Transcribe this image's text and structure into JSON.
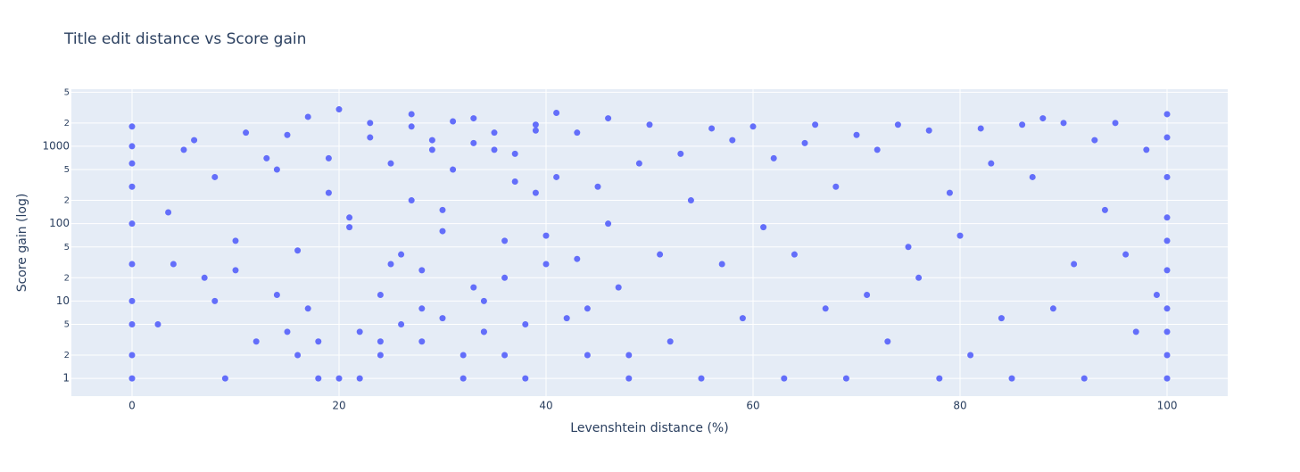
{
  "chart_data": {
    "type": "scatter",
    "title": "Title edit distance vs Score gain",
    "x_label": "Levenshtein distance (%)",
    "y_label": "Score gain (log)",
    "color": "#636efa",
    "y_log": true,
    "grid": true,
    "xlim": [
      -5.86,
      105.86
    ],
    "ylim": [
      0.59,
      5460
    ],
    "xticks": [
      0,
      20,
      40,
      60,
      80,
      100
    ],
    "yticks": [
      1,
      2,
      5,
      10,
      {
        "value": 20,
        "label": "2"
      },
      {
        "value": 50,
        "label": "5"
      },
      100,
      {
        "value": 200,
        "label": "2"
      },
      {
        "value": 500,
        "label": "5"
      },
      1000,
      {
        "value": 2000,
        "label": "2"
      },
      {
        "value": 5000,
        "label": "5"
      }
    ],
    "x": [
      0,
      0,
      0,
      0,
      0,
      0,
      0,
      0,
      0,
      0,
      100,
      100,
      100,
      100,
      100,
      100,
      100,
      100,
      100,
      100,
      2.5,
      3.5,
      4,
      5,
      6,
      7,
      8,
      9,
      10,
      11,
      12,
      13,
      14,
      15,
      16,
      17,
      18,
      19,
      20,
      21,
      22,
      23,
      24,
      25,
      26,
      27,
      28,
      29,
      30,
      31,
      32,
      33,
      34,
      35,
      36,
      37,
      38,
      39,
      40,
      41,
      42,
      43,
      44,
      45,
      46,
      47,
      48,
      49,
      50,
      51,
      52,
      53,
      54,
      55,
      56,
      57,
      58,
      59,
      60,
      61,
      62,
      63,
      64,
      65,
      66,
      67,
      68,
      69,
      70,
      71,
      72,
      73,
      74,
      75,
      76,
      77,
      78,
      79,
      80,
      81,
      82,
      83,
      84,
      85,
      86,
      87,
      88,
      89,
      90,
      91,
      92,
      93,
      94,
      95,
      96,
      97,
      98,
      99,
      15,
      18,
      20,
      22,
      24,
      26,
      28,
      30,
      32,
      34,
      36,
      38,
      19,
      23,
      27,
      29,
      31,
      33,
      35,
      37,
      39,
      41,
      16,
      21,
      25,
      27,
      30,
      33,
      36,
      39,
      43,
      46,
      8,
      10,
      14,
      17,
      24,
      28,
      34,
      40,
      44,
      48
    ],
    "y": [
      1,
      2,
      5,
      10,
      30,
      100,
      300,
      1000,
      1800,
      600,
      1,
      2,
      4,
      8,
      25,
      120,
      400,
      1300,
      2600,
      60,
      5,
      140,
      30,
      900,
      1200,
      20,
      400,
      1,
      60,
      1500,
      3,
      700,
      12,
      1400,
      2,
      2400,
      1,
      250,
      3000,
      90,
      1,
      2000,
      3,
      600,
      40,
      2600,
      8,
      1200,
      150,
      500,
      2,
      2300,
      4,
      900,
      20,
      350,
      1,
      1600,
      70,
      2700,
      6,
      1500,
      2,
      300,
      2300,
      15,
      1,
      600,
      1900,
      40,
      3,
      800,
      200,
      1,
      1700,
      30,
      1200,
      6,
      1800,
      90,
      700,
      1,
      40,
      1100,
      1900,
      8,
      300,
      1,
      1400,
      12,
      900,
      3,
      1900,
      50,
      20,
      1600,
      1,
      250,
      70,
      2,
      1700,
      600,
      6,
      1,
      1900,
      400,
      2300,
      8,
      2000,
      30,
      1,
      1200,
      150,
      2000,
      40,
      4,
      900,
      12,
      4,
      3,
      1,
      4,
      2,
      5,
      3,
      6,
      1,
      4,
      2,
      5,
      700,
      1300,
      1800,
      900,
      2100,
      1100,
      1500,
      800,
      1900,
      400,
      45,
      120,
      30,
      200,
      80,
      15,
      60,
      250,
      35,
      100,
      10,
      25,
      500,
      8,
      12,
      25,
      10,
      30,
      8,
      2
    ]
  }
}
